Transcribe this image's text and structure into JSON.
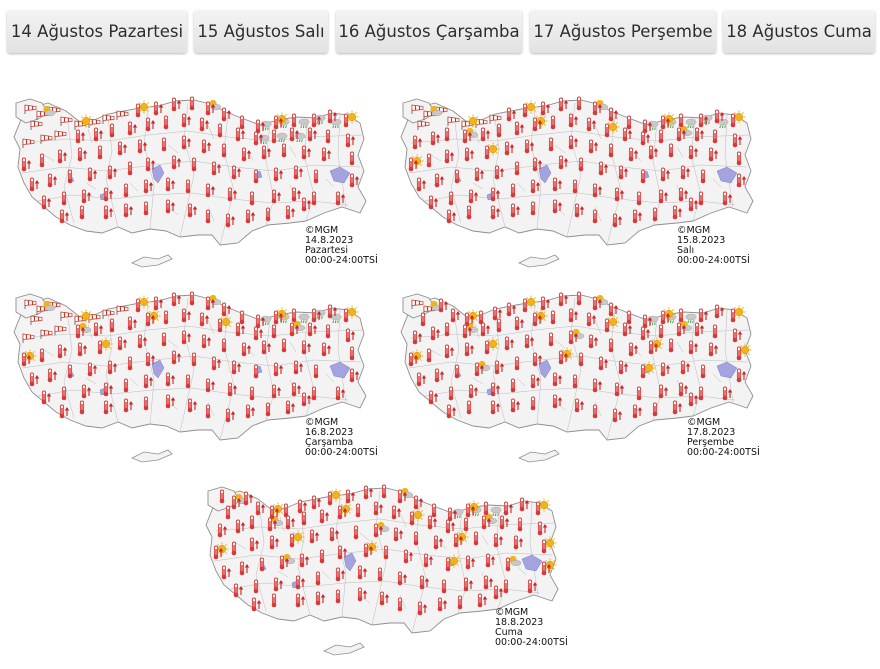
{
  "tabs": [
    {
      "label": "14 Ağustos Pazartesi"
    },
    {
      "label": "15 Ağustos Salı"
    },
    {
      "label": "16 Ağustos Çarşamba"
    },
    {
      "label": "17 Ağustos Perşembe"
    },
    {
      "label": "18 Ağustos Cuma"
    }
  ],
  "maps": [
    {
      "copyright": "©MGM",
      "date": "14.8.2023",
      "day": "Pazartesi",
      "period": "00:00-24:00TSİ",
      "icon_mix": {
        "windy": 12,
        "rain": 8,
        "sunny": 6
      }
    },
    {
      "copyright": "©MGM",
      "date": "15.8.2023",
      "day": "Salı",
      "period": "00:00-24:00TSİ",
      "icon_mix": {
        "windy": 8,
        "rain": 5,
        "sunny": 12
      }
    },
    {
      "copyright": "©MGM",
      "date": "16.8.2023",
      "day": "Çarşamba",
      "period": "00:00-24:00TSİ",
      "icon_mix": {
        "windy": 12,
        "rain": 5,
        "sunny": 12
      }
    },
    {
      "copyright": "©MGM",
      "date": "17.8.2023",
      "day": "Perşembe",
      "period": "00:00-24:00TSİ",
      "icon_mix": {
        "windy": 2,
        "rain": 3,
        "sunny": 18
      }
    },
    {
      "copyright": "©MGM",
      "date": "18.8.2023",
      "day": "Cuma",
      "period": "00:00-24:00TSİ",
      "icon_mix": {
        "windy": 0,
        "rain": 3,
        "sunny": 20
      }
    }
  ],
  "colors": {
    "tab_text": "#2d2d2d",
    "land": "#f3f3f3",
    "border": "#8f8f8f",
    "lake": "#a3a3e0",
    "thermometer": "#d83838",
    "arrow": "#cc2222",
    "sun": "#f2b21a",
    "cloud": "#c8c8c8",
    "rain": "#3a9a3a",
    "windsock": "#c0392b"
  }
}
